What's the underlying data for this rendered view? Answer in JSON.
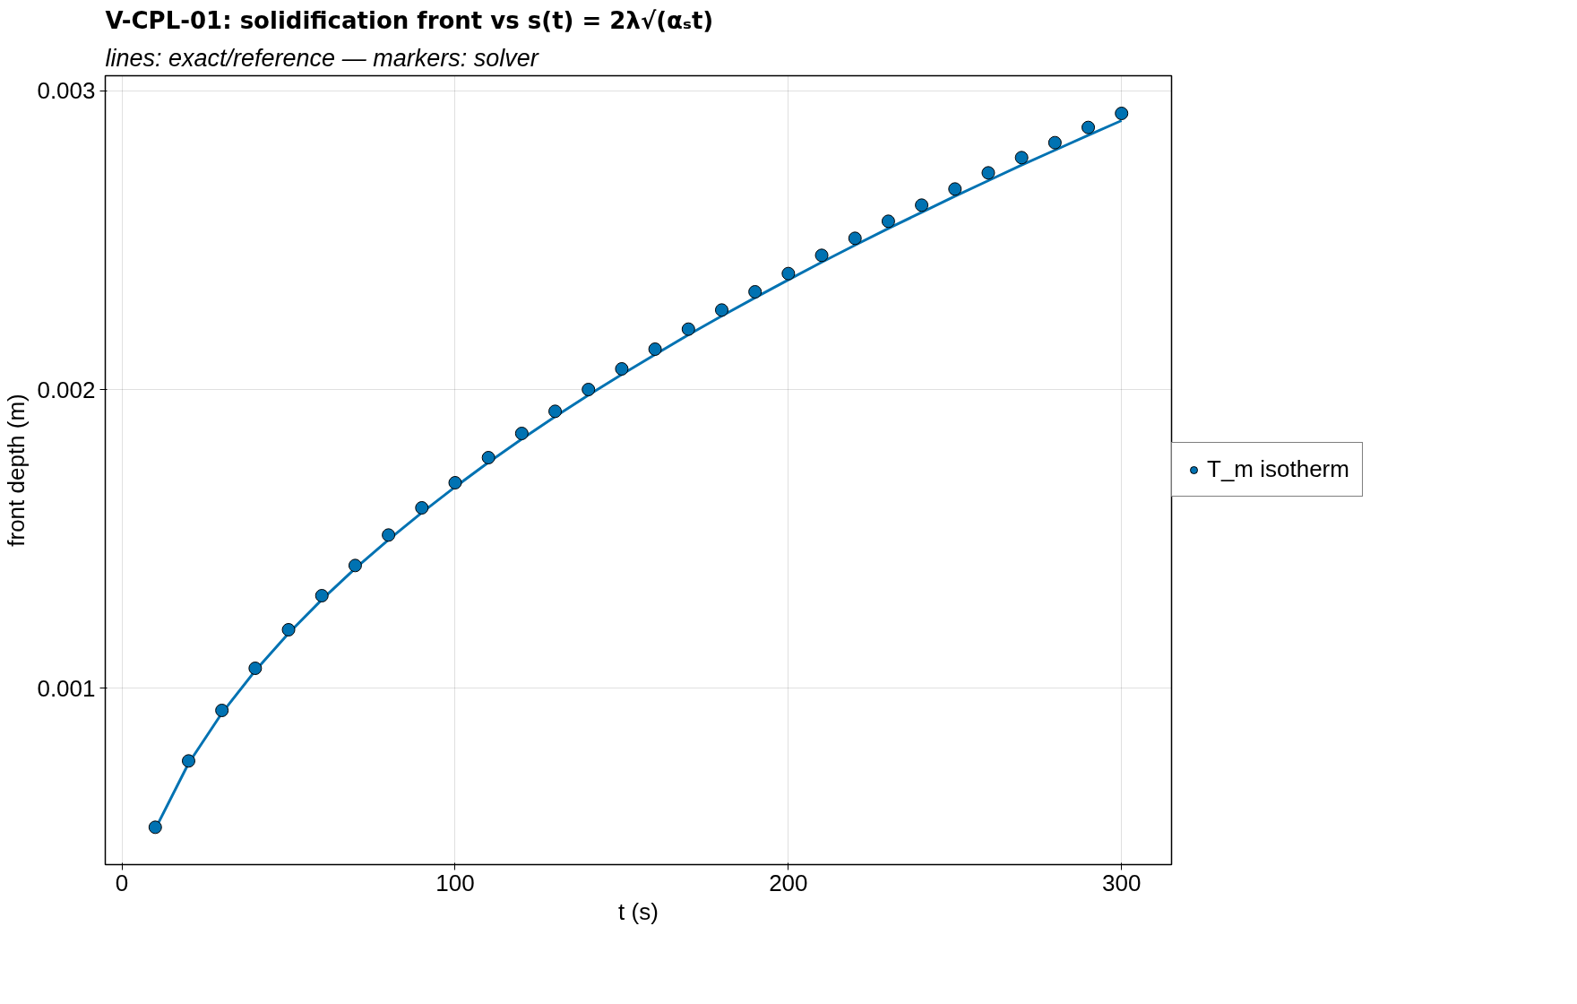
{
  "chart_data": {
    "type": "scatter",
    "title": "V-CPL-01: solidification front vs s(t) = 2λ√(αₛt)",
    "subtitle": "lines: exact/reference — markers: solver",
    "xlabel": "t (s)",
    "ylabel": "front depth (m)",
    "xlim": [
      -5,
      315
    ],
    "ylim": [
      0.00041,
      0.00305
    ],
    "xticks": [
      0,
      100,
      200,
      300
    ],
    "yticks": [
      0.001,
      0.002,
      0.003
    ],
    "grid": true,
    "legend": "right",
    "marker": "circle",
    "line_style": "solid",
    "x": [
      10,
      20,
      30,
      40,
      50,
      60,
      70,
      80,
      90,
      100,
      110,
      120,
      130,
      140,
      150,
      160,
      170,
      180,
      190,
      200,
      210,
      220,
      230,
      240,
      250,
      260,
      270,
      280,
      290,
      300
    ],
    "series": [
      {
        "type": "line",
        "marker": "none",
        "color": "#0072b2",
        "values": [
          0.000529,
          0.000749,
          0.000917,
          0.001059,
          0.001184,
          0.001297,
          0.001401,
          0.001497,
          0.001588,
          0.001674,
          0.001756,
          0.001834,
          0.001909,
          0.001981,
          0.00205,
          0.002117,
          0.002183,
          0.002246,
          0.002307,
          0.002367,
          0.002426,
          0.002483,
          0.002539,
          0.002593,
          0.002647,
          0.002699,
          0.002751,
          0.002801,
          0.002851,
          0.0029
        ]
      },
      {
        "name": "T_m isotherm",
        "color": "#0072b2",
        "values": [
          0.000535,
          0.000757,
          0.000926,
          0.001067,
          0.001196,
          0.00131,
          0.001411,
          0.001513,
          0.001604,
          0.001688,
          0.001772,
          0.001853,
          0.001927,
          0.002,
          0.002069,
          0.002135,
          0.002202,
          0.002266,
          0.002327,
          0.002388,
          0.002449,
          0.002506,
          0.002563,
          0.002617,
          0.002671,
          0.002725,
          0.002776,
          0.002826,
          0.002877,
          0.002924
        ]
      }
    ]
  }
}
